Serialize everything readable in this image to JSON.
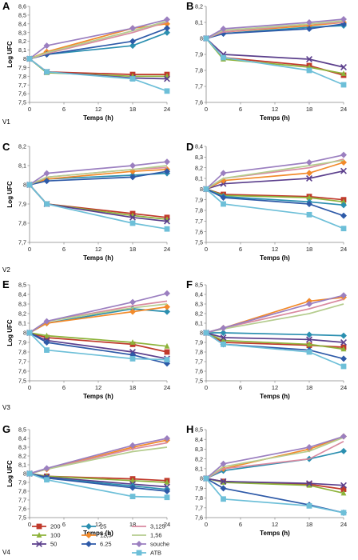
{
  "series_styles": [
    {
      "name": "200",
      "color": "#c0392b",
      "marker": "square"
    },
    {
      "name": "100",
      "color": "#8db33a",
      "marker": "triangle"
    },
    {
      "name": "50",
      "color": "#5b3f8c",
      "marker": "x"
    },
    {
      "name": "25",
      "color": "#2b8fb0",
      "marker": "diamond"
    },
    {
      "name": "12,5",
      "color": "#f28a2a",
      "marker": "diamond"
    },
    {
      "name": "6.25",
      "color": "#2e5aa8",
      "marker": "diamond"
    },
    {
      "name": "3,125",
      "color": "#d98aa0",
      "marker": "line"
    },
    {
      "name": "1,56",
      "color": "#b5cc8e",
      "marker": "line"
    },
    {
      "name": "souche",
      "color": "#9b7fc0",
      "marker": "diamond"
    },
    {
      "name": "ATB",
      "color": "#6dbfd8",
      "marker": "square"
    }
  ],
  "legend": {
    "items": [
      "200",
      "100",
      "50",
      "25",
      "12,5",
      "6.25",
      "3,125",
      "1,56",
      "souche",
      "ATB"
    ]
  },
  "chart_data": [
    {
      "type": "line",
      "label": "A",
      "variant": "V1",
      "xlabel": "Temps (h)",
      "ylabel": "Log UFC",
      "ylim": [
        7.5,
        8.6
      ],
      "yticks": [
        "7,5",
        "7,6",
        "7,7",
        "7,8",
        "7,9",
        "8",
        "8,1",
        "8,2",
        "8,3",
        "8,4",
        "8,5",
        "8,6"
      ],
      "x": [
        0,
        3,
        18,
        24
      ],
      "xticks": [
        "0",
        "6",
        "12",
        "18",
        "24"
      ],
      "series": [
        {
          "name": "200",
          "values": [
            8.0,
            7.85,
            7.82,
            7.82
          ]
        },
        {
          "name": "100",
          "values": [
            8.0,
            7.84,
            7.8,
            7.8
          ]
        },
        {
          "name": "50",
          "values": [
            8.0,
            7.85,
            7.78,
            7.77
          ]
        },
        {
          "name": "25",
          "values": [
            8.0,
            8.05,
            8.15,
            8.3
          ]
        },
        {
          "name": "12,5",
          "values": [
            8.0,
            8.08,
            8.35,
            8.4
          ]
        },
        {
          "name": "6.25",
          "values": [
            8.0,
            8.05,
            8.2,
            8.35
          ]
        },
        {
          "name": "3,125",
          "values": [
            8.0,
            8.06,
            8.3,
            8.42
          ]
        },
        {
          "name": "1,56",
          "values": [
            8.0,
            8.07,
            8.32,
            8.43
          ]
        },
        {
          "name": "souche",
          "values": [
            8.0,
            8.15,
            8.35,
            8.45
          ]
        },
        {
          "name": "ATB",
          "values": [
            8.0,
            7.85,
            7.77,
            7.63
          ]
        }
      ]
    },
    {
      "type": "line",
      "label": "B",
      "xlabel": "Temps (h)",
      "ylabel": "",
      "ylim": [
        7.6,
        8.2
      ],
      "yticks": [
        "7,6",
        "7,7",
        "7,8",
        "7,9",
        "8",
        "8,1",
        "8,2"
      ],
      "x": [
        0,
        3,
        18,
        24
      ],
      "xticks": [
        "0",
        "6",
        "12",
        "18",
        "24"
      ],
      "series": [
        {
          "name": "200",
          "values": [
            8.0,
            7.88,
            7.83,
            7.77
          ]
        },
        {
          "name": "100",
          "values": [
            8.0,
            7.87,
            7.82,
            7.78
          ]
        },
        {
          "name": "50",
          "values": [
            8.0,
            7.9,
            7.87,
            7.82
          ]
        },
        {
          "name": "25",
          "values": [
            8.0,
            8.03,
            8.07,
            8.08
          ]
        },
        {
          "name": "12,5",
          "values": [
            8.0,
            8.04,
            8.08,
            8.1
          ]
        },
        {
          "name": "6.25",
          "values": [
            8.0,
            8.03,
            8.06,
            8.09
          ]
        },
        {
          "name": "3,125",
          "values": [
            8.0,
            8.04,
            8.09,
            8.1
          ]
        },
        {
          "name": "1,56",
          "values": [
            8.0,
            8.05,
            8.09,
            8.11
          ]
        },
        {
          "name": "souche",
          "values": [
            8.0,
            8.06,
            8.1,
            8.12
          ]
        },
        {
          "name": "ATB",
          "values": [
            8.0,
            7.88,
            7.8,
            7.71
          ]
        }
      ]
    },
    {
      "type": "line",
      "label": "C",
      "variant": "V2",
      "xlabel": "Temps (h)",
      "ylabel": "Log UFC",
      "ylim": [
        7.7,
        8.2
      ],
      "yticks": [
        "7,7",
        "7,8",
        "7,9",
        "8",
        "8,1",
        "8,2"
      ],
      "x": [
        0,
        3,
        18,
        24
      ],
      "xticks": [
        "0",
        "6",
        "12",
        "18",
        "24"
      ],
      "series": [
        {
          "name": "200",
          "values": [
            8.0,
            7.9,
            7.85,
            7.83
          ]
        },
        {
          "name": "100",
          "values": [
            8.0,
            7.9,
            7.84,
            7.82
          ]
        },
        {
          "name": "50",
          "values": [
            8.0,
            7.9,
            7.83,
            7.81
          ]
        },
        {
          "name": "25",
          "values": [
            8.0,
            8.03,
            8.05,
            8.06
          ]
        },
        {
          "name": "12,5",
          "values": [
            8.0,
            8.03,
            8.07,
            8.08
          ]
        },
        {
          "name": "6.25",
          "values": [
            8.0,
            8.02,
            8.04,
            8.07
          ]
        },
        {
          "name": "3,125",
          "values": [
            8.0,
            8.04,
            8.08,
            8.09
          ]
        },
        {
          "name": "1,56",
          "values": [
            8.0,
            8.04,
            8.08,
            8.1
          ]
        },
        {
          "name": "souche",
          "values": [
            8.0,
            8.06,
            8.1,
            8.12
          ]
        },
        {
          "name": "ATB",
          "values": [
            8.0,
            7.9,
            7.8,
            7.77
          ]
        }
      ]
    },
    {
      "type": "line",
      "label": "D",
      "xlabel": "Temps (h)",
      "ylabel": "",
      "ylim": [
        7.5,
        8.4
      ],
      "yticks": [
        "7,5",
        "7,6",
        "7,7",
        "7,8",
        "7,9",
        "8",
        "8,1",
        "8,2",
        "8,3",
        "8,4"
      ],
      "x": [
        0,
        3,
        18,
        24
      ],
      "xticks": [
        "0",
        "6",
        "12",
        "18",
        "24"
      ],
      "series": [
        {
          "name": "200",
          "values": [
            8.0,
            7.95,
            7.93,
            7.9
          ]
        },
        {
          "name": "100",
          "values": [
            8.0,
            7.94,
            7.92,
            7.88
          ]
        },
        {
          "name": "50",
          "values": [
            8.0,
            8.05,
            8.1,
            8.17
          ]
        },
        {
          "name": "25",
          "values": [
            8.0,
            7.93,
            7.88,
            7.85
          ]
        },
        {
          "name": "12,5",
          "values": [
            8.0,
            8.08,
            8.15,
            8.25
          ]
        },
        {
          "name": "6.25",
          "values": [
            8.0,
            7.92,
            7.86,
            7.75
          ]
        },
        {
          "name": "3,125",
          "values": [
            8.0,
            8.1,
            8.2,
            8.28
          ]
        },
        {
          "name": "1,56",
          "values": [
            8.0,
            8.1,
            8.22,
            8.27
          ]
        },
        {
          "name": "souche",
          "values": [
            8.0,
            8.15,
            8.25,
            8.32
          ]
        },
        {
          "name": "ATB",
          "values": [
            8.0,
            7.86,
            7.76,
            7.63
          ]
        }
      ]
    },
    {
      "type": "line",
      "label": "E",
      "variant": "V3",
      "xlabel": "Temps (h)",
      "ylabel": "Log UFC",
      "ylim": [
        7.5,
        8.5
      ],
      "yticks": [
        "7,5",
        "7,6",
        "7,7",
        "7,8",
        "7,9",
        "8",
        "8,1",
        "8,2",
        "8,3",
        "8,4",
        "8,5"
      ],
      "x": [
        0,
        3,
        18,
        24
      ],
      "xticks": [
        "0",
        "6",
        "12",
        "18",
        "24"
      ],
      "series": [
        {
          "name": "200",
          "values": [
            8.0,
            7.95,
            7.88,
            7.8
          ]
        },
        {
          "name": "100",
          "values": [
            8.0,
            7.97,
            7.9,
            7.86
          ]
        },
        {
          "name": "50",
          "values": [
            8.0,
            7.92,
            7.8,
            7.73
          ]
        },
        {
          "name": "25",
          "values": [
            8.0,
            8.1,
            8.25,
            8.22
          ]
        },
        {
          "name": "12,5",
          "values": [
            8.0,
            8.1,
            8.22,
            8.27
          ]
        },
        {
          "name": "6.25",
          "values": [
            8.0,
            7.9,
            7.77,
            7.68
          ]
        },
        {
          "name": "3,125",
          "values": [
            8.0,
            8.12,
            8.28,
            8.33
          ]
        },
        {
          "name": "1,56",
          "values": [
            8.0,
            8.12,
            8.26,
            8.3
          ]
        },
        {
          "name": "souche",
          "values": [
            8.0,
            8.12,
            8.32,
            8.41
          ]
        },
        {
          "name": "ATB",
          "values": [
            8.0,
            7.82,
            7.73,
            7.72
          ]
        }
      ]
    },
    {
      "type": "line",
      "label": "F",
      "xlabel": "Temps (h)",
      "ylabel": "",
      "ylim": [
        7.5,
        8.5
      ],
      "yticks": [
        "7,5",
        "7,6",
        "7,7",
        "7,8",
        "7,9",
        "8",
        "8,1",
        "8,2",
        "8,3",
        "8,4",
        "8,5"
      ],
      "x": [
        0,
        3,
        18,
        24
      ],
      "xticks": [
        "0",
        "6",
        "12",
        "18",
        "24"
      ],
      "series": [
        {
          "name": "200",
          "values": [
            8.0,
            7.9,
            7.87,
            7.85
          ]
        },
        {
          "name": "100",
          "values": [
            8.0,
            7.92,
            7.88,
            7.83
          ]
        },
        {
          "name": "50",
          "values": [
            8.0,
            7.95,
            7.93,
            7.9
          ]
        },
        {
          "name": "25",
          "values": [
            8.0,
            8.0,
            7.98,
            7.97
          ]
        },
        {
          "name": "12,5",
          "values": [
            8.0,
            8.05,
            8.33,
            8.37
          ]
        },
        {
          "name": "6.25",
          "values": [
            8.0,
            7.88,
            7.82,
            7.73
          ]
        },
        {
          "name": "3,125",
          "values": [
            8.0,
            8.05,
            8.25,
            8.35
          ]
        },
        {
          "name": "1,56",
          "values": [
            8.0,
            8.04,
            8.2,
            8.3
          ]
        },
        {
          "name": "souche",
          "values": [
            8.0,
            8.05,
            8.3,
            8.39
          ]
        },
        {
          "name": "ATB",
          "values": [
            8.0,
            7.88,
            7.8,
            7.65
          ]
        }
      ]
    },
    {
      "type": "line",
      "label": "G",
      "variant": "V4",
      "xlabel": "Temps (h)",
      "ylabel": "Log UFC",
      "ylim": [
        7.5,
        8.5
      ],
      "yticks": [
        "7,5",
        "7,6",
        "7,7",
        "7,8",
        "7,9",
        "8",
        "8,1",
        "8,2",
        "8,3",
        "8,4",
        "8,5"
      ],
      "x": [
        0,
        3,
        18,
        24
      ],
      "xticks": [
        "0",
        "6",
        "12",
        "18",
        "24"
      ],
      "series": [
        {
          "name": "200",
          "values": [
            8.0,
            7.97,
            7.94,
            7.92
          ]
        },
        {
          "name": "100",
          "values": [
            8.0,
            7.97,
            7.92,
            7.9
          ]
        },
        {
          "name": "50",
          "values": [
            8.0,
            7.96,
            7.88,
            7.85
          ]
        },
        {
          "name": "25",
          "values": [
            8.0,
            7.95,
            7.86,
            7.82
          ]
        },
        {
          "name": "12,5",
          "values": [
            8.0,
            8.05,
            8.3,
            8.38
          ]
        },
        {
          "name": "6.25",
          "values": [
            8.0,
            7.95,
            7.84,
            7.8
          ]
        },
        {
          "name": "3,125",
          "values": [
            8.0,
            8.05,
            8.28,
            8.35
          ]
        },
        {
          "name": "1,56",
          "values": [
            8.0,
            8.05,
            8.25,
            8.3
          ]
        },
        {
          "name": "souche",
          "values": [
            8.0,
            8.06,
            8.32,
            8.4
          ]
        },
        {
          "name": "ATB",
          "values": [
            8.0,
            7.93,
            7.74,
            7.73
          ]
        }
      ]
    },
    {
      "type": "line",
      "label": "H",
      "xlabel": "Temps (h)",
      "ylabel": "",
      "ylim": [
        7.6,
        8.5
      ],
      "yticks": [
        "7,6",
        "7,7",
        "7,8",
        "7,9",
        "8",
        "8,1",
        "8,2",
        "8,3",
        "8,4",
        "8,5"
      ],
      "x": [
        0,
        3,
        18,
        24
      ],
      "xticks": [
        "0",
        "6",
        "12",
        "18",
        "24"
      ],
      "series": [
        {
          "name": "200",
          "values": [
            8.0,
            7.97,
            7.94,
            7.89
          ]
        },
        {
          "name": "100",
          "values": [
            8.0,
            7.96,
            7.93,
            7.85
          ]
        },
        {
          "name": "50",
          "values": [
            8.0,
            7.97,
            7.95,
            7.93
          ]
        },
        {
          "name": "25",
          "values": [
            8.0,
            8.08,
            8.2,
            8.28
          ]
        },
        {
          "name": "12,5",
          "values": [
            8.0,
            8.1,
            8.3,
            8.43
          ]
        },
        {
          "name": "6.25",
          "values": [
            8.0,
            7.9,
            7.73,
            7.65
          ]
        },
        {
          "name": "3,125",
          "values": [
            8.0,
            8.1,
            8.2,
            8.38
          ]
        },
        {
          "name": "1,56",
          "values": [
            8.0,
            8.12,
            8.28,
            8.42
          ]
        },
        {
          "name": "souche",
          "values": [
            8.0,
            8.15,
            8.32,
            8.43
          ]
        },
        {
          "name": "ATB",
          "values": [
            8.0,
            7.79,
            7.72,
            7.65
          ]
        }
      ]
    }
  ]
}
